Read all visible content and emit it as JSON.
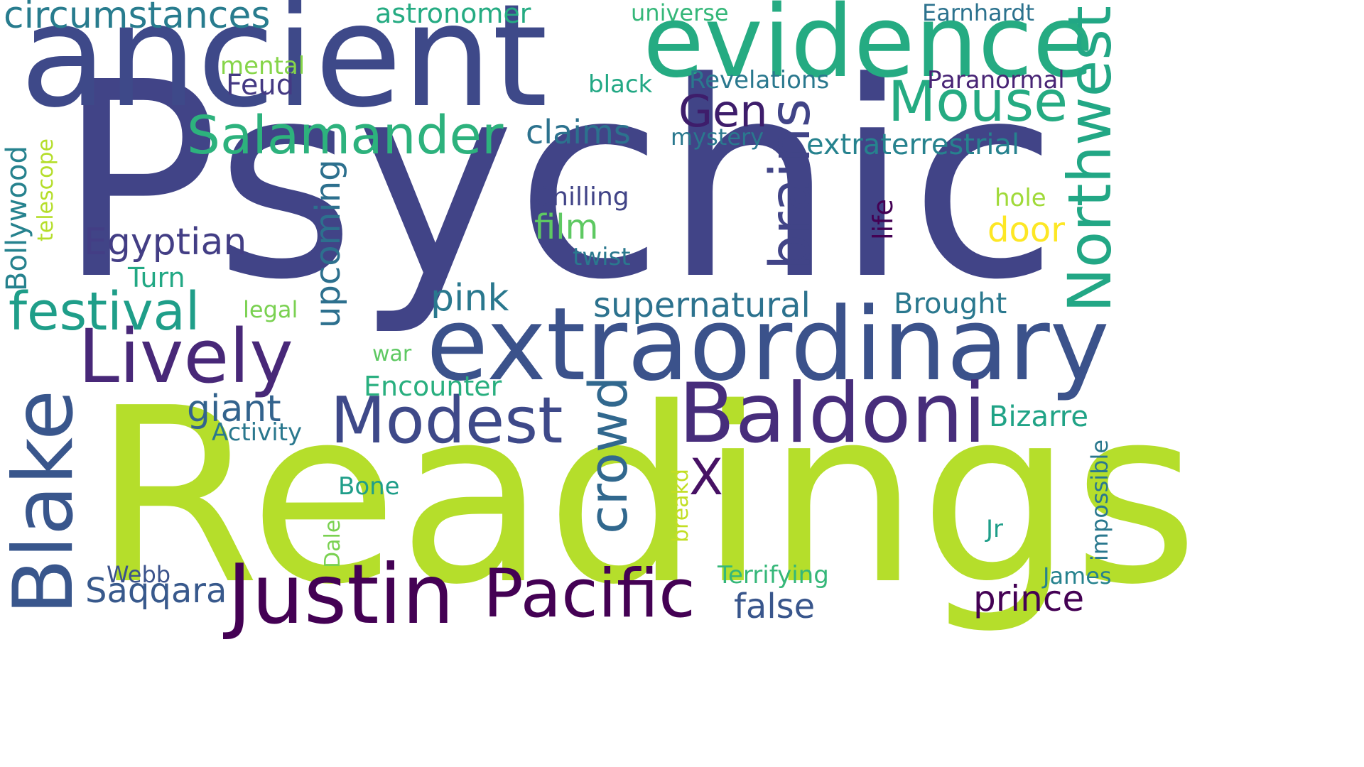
{
  "cloud": {
    "words": [
      {
        "text": "Psychic",
        "color": "#414487"
      },
      {
        "text": "Readings",
        "color": "#b5de2b"
      },
      {
        "text": "ancient",
        "color": "#3e4989"
      },
      {
        "text": "evidence",
        "color": "#25ab82"
      },
      {
        "text": "extraordinary",
        "color": "#3b528b"
      },
      {
        "text": "Justin",
        "color": "#440154"
      },
      {
        "text": "Baldoni",
        "color": "#472d7b"
      },
      {
        "text": "Blake",
        "color": "#39568c"
      },
      {
        "text": "Lively",
        "color": "#482878"
      },
      {
        "text": "Pacific",
        "color": "#440154"
      },
      {
        "text": "Modest",
        "color": "#3e4989"
      },
      {
        "text": "Mouse",
        "color": "#25ab82"
      },
      {
        "text": "Salamander",
        "color": "#2db27d"
      },
      {
        "text": "festival",
        "color": "#1f9e89"
      },
      {
        "text": "Northwest",
        "color": "#22a785"
      },
      {
        "text": "brains",
        "color": "#414487"
      },
      {
        "text": "crowd",
        "color": "#31688e"
      },
      {
        "text": "circumstances",
        "color": "#287c8e"
      },
      {
        "text": "Egyptian",
        "color": "#433e85"
      },
      {
        "text": "Gen",
        "color": "#3e1d6b"
      },
      {
        "text": "upcoming",
        "color": "#2d708e"
      },
      {
        "text": "supernatural",
        "color": "#2c728e"
      },
      {
        "text": "claims",
        "color": "#2c728e"
      },
      {
        "text": "extraterrestrial",
        "color": "#26828e"
      },
      {
        "text": "Saqqara",
        "color": "#38598c"
      },
      {
        "text": "prince",
        "color": "#440154"
      },
      {
        "text": "false",
        "color": "#39568c"
      },
      {
        "text": "X",
        "color": "#471164"
      },
      {
        "text": "giant",
        "color": "#33638d"
      },
      {
        "text": "film",
        "color": "#5ec962"
      },
      {
        "text": "pink",
        "color": "#2a788e"
      },
      {
        "text": "door",
        "color": "#fde725"
      },
      {
        "text": "Bizarre",
        "color": "#20a386"
      },
      {
        "text": "Brought",
        "color": "#2a788e"
      },
      {
        "text": "Bollywood",
        "color": "#26828e"
      },
      {
        "text": "Encounter",
        "color": "#29af7f"
      },
      {
        "text": "Chilling",
        "color": "#414487"
      },
      {
        "text": "Revelations",
        "color": "#2a788e"
      },
      {
        "text": "Paranormal",
        "color": "#482475"
      },
      {
        "text": "Earnhardt",
        "color": "#2c728e"
      },
      {
        "text": "astronomer",
        "color": "#25ab82"
      },
      {
        "text": "universe",
        "color": "#35b779"
      },
      {
        "text": "mental",
        "color": "#86d549"
      },
      {
        "text": "Feud",
        "color": "#443983"
      },
      {
        "text": "black",
        "color": "#22a884"
      },
      {
        "text": "mystery",
        "color": "#2a788e"
      },
      {
        "text": "hole",
        "color": "#a0da39"
      },
      {
        "text": "life",
        "color": "#440154"
      },
      {
        "text": "twist",
        "color": "#2a788e"
      },
      {
        "text": "Turn",
        "color": "#22a884"
      },
      {
        "text": "telescope",
        "color": "#b5de2b"
      },
      {
        "text": "legal",
        "color": "#7ad151"
      },
      {
        "text": "war",
        "color": "#5ec962"
      },
      {
        "text": "Activity",
        "color": "#2a788e"
      },
      {
        "text": "Bone",
        "color": "#1f9e89"
      },
      {
        "text": "Dale",
        "color": "#7ad151"
      },
      {
        "text": "breakd",
        "color": "#c2df23"
      },
      {
        "text": "Webb",
        "color": "#3b528b"
      },
      {
        "text": "Terrifying",
        "color": "#35b779"
      },
      {
        "text": "Jr",
        "color": "#1f9e89"
      },
      {
        "text": "James",
        "color": "#26828e"
      },
      {
        "text": "impossible",
        "color": "#2a788e"
      }
    ]
  }
}
